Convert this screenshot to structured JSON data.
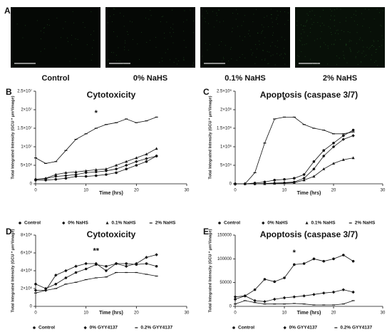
{
  "panel_a": {
    "letter": "A",
    "labels": [
      "Control",
      "0% NaHS",
      "0.1% NaHS",
      "2% NaHS"
    ]
  },
  "chart_data": [
    {
      "type": "line",
      "panel": "B",
      "title": "Cytotoxicity",
      "x_label": "Time (hrs)",
      "y_label": "Total Integrated Intensity (GCU * µm²/image)",
      "x": [
        0,
        2,
        4,
        6,
        8,
        10,
        12,
        14,
        16,
        18,
        20,
        22,
        24
      ],
      "xlim": [
        0,
        30
      ],
      "xticks": [
        0,
        10,
        20,
        30
      ],
      "ylim": [
        0,
        25000000
      ],
      "yticks": [
        0,
        {
          "value": 5000000,
          "label": "5×10⁶"
        },
        {
          "value": 10000000,
          "label": "1×10⁷"
        },
        {
          "value": 15000000,
          "label": "1.5×10⁷"
        },
        {
          "value": 20000000,
          "label": "2×10⁷"
        },
        {
          "value": 25000000,
          "label": "2.5×10⁷"
        }
      ],
      "annotation": {
        "text": "*",
        "x": 12,
        "y": 19000000
      },
      "series": [
        {
          "name": "Control",
          "color": "#111111",
          "marker": "circle",
          "values": [
            1000000,
            1000000,
            1200000,
            1500000,
            2000000,
            2000000,
            2200000,
            2500000,
            3000000,
            4000000,
            5000000,
            6000000,
            7500000
          ]
        },
        {
          "name": "0% NaHS",
          "color": "#111111",
          "marker": "diamond",
          "values": [
            1200000,
            1400000,
            2000000,
            2200000,
            2500000,
            3000000,
            3200000,
            3500000,
            4000000,
            5000000,
            6000000,
            6800000,
            7500000
          ]
        },
        {
          "name": "0.1% NaHS",
          "color": "#111111",
          "marker": "triangle",
          "values": [
            1200000,
            1500000,
            2500000,
            3000000,
            3200000,
            3500000,
            3800000,
            4000000,
            5000000,
            6000000,
            7000000,
            8000000,
            9500000
          ]
        },
        {
          "name": "2% NaHS",
          "color": "#111111",
          "marker": "dash",
          "values": [
            7000000,
            5500000,
            6000000,
            9000000,
            12000000,
            13500000,
            15000000,
            16000000,
            16500000,
            17500000,
            16500000,
            17000000,
            18000000
          ]
        }
      ]
    },
    {
      "type": "line",
      "panel": "C",
      "title": "Apoptosis (caspase 3/7)",
      "x_label": "Time (hrs)",
      "y_label": "Total Integrated Intensity (GCU * µm²/image)",
      "x": [
        0,
        2,
        4,
        6,
        8,
        10,
        12,
        14,
        16,
        18,
        20,
        22,
        24
      ],
      "xlim": [
        0,
        30
      ],
      "xticks": [
        0,
        10,
        20,
        30
      ],
      "ylim": [
        0,
        2500000
      ],
      "yticks": [
        0,
        {
          "value": 500000,
          "label": "5×10⁵"
        },
        {
          "value": 1000000,
          "label": "1×10⁶"
        },
        {
          "value": 1500000,
          "label": "1.5×10⁶"
        },
        {
          "value": 2000000,
          "label": "2×10⁶"
        },
        {
          "value": 2500000,
          "label": "2.5×10⁶"
        }
      ],
      "annotation": {
        "text": "*",
        "x": 10,
        "y": 2250000
      },
      "series": [
        {
          "name": "Control",
          "color": "#111111",
          "marker": "circle",
          "values": [
            0,
            0,
            20000,
            50000,
            100000,
            120000,
            150000,
            250000,
            600000,
            900000,
            1100000,
            1300000,
            1450000
          ]
        },
        {
          "name": "0% NaHS",
          "color": "#111111",
          "marker": "diamond",
          "values": [
            0,
            0,
            0,
            10000,
            20000,
            30000,
            50000,
            150000,
            400000,
            750000,
            1000000,
            1200000,
            1300000
          ]
        },
        {
          "name": "0.1% NaHS",
          "color": "#111111",
          "marker": "triangle",
          "values": [
            0,
            0,
            0,
            0,
            10000,
            20000,
            30000,
            100000,
            200000,
            400000,
            550000,
            650000,
            700000
          ]
        },
        {
          "name": "2% NaHS",
          "color": "#111111",
          "marker": "dash",
          "values": [
            0,
            0,
            300000,
            1100000,
            1750000,
            1800000,
            1800000,
            1600000,
            1500000,
            1450000,
            1350000,
            1350000,
            1400000
          ]
        }
      ]
    },
    {
      "type": "line",
      "panel": "D",
      "title": "Cytotoxicity",
      "x_label": "Time (hrs)",
      "y_label": "Total Integrated Intensity (GCU * µm²/image)",
      "x": [
        0,
        2,
        4,
        6,
        8,
        10,
        12,
        14,
        16,
        18,
        20,
        22,
        24
      ],
      "xlim": [
        0,
        30
      ],
      "xticks": [
        0,
        10,
        20,
        30
      ],
      "ylim": [
        0,
        8000000
      ],
      "yticks": [
        0,
        {
          "value": 2000000,
          "label": "2×10⁶"
        },
        {
          "value": 4000000,
          "label": "4×10⁶"
        },
        {
          "value": 6000000,
          "label": "6×10⁶"
        },
        {
          "value": 8000000,
          "label": "8×10⁶"
        }
      ],
      "annotation": {
        "text": "**",
        "x": 12,
        "y": 6200000
      },
      "series": [
        {
          "name": "Control",
          "color": "#111111",
          "marker": "circle",
          "values": [
            2500000,
            2000000,
            2500000,
            3200000,
            3800000,
            4200000,
            4700000,
            4500000,
            4800000,
            4800000,
            4700000,
            4800000,
            4500000
          ]
        },
        {
          "name": "0% GYY4137",
          "color": "#111111",
          "marker": "diamond",
          "values": [
            1800000,
            1800000,
            3500000,
            4000000,
            4500000,
            4800000,
            4800000,
            4000000,
            4800000,
            4500000,
            4800000,
            5500000,
            5800000
          ]
        },
        {
          "name": "0.2% GYY4137",
          "color": "#111111",
          "marker": "dash",
          "values": [
            1500000,
            1800000,
            2000000,
            2500000,
            2700000,
            3000000,
            3200000,
            3300000,
            3800000,
            3800000,
            3800000,
            3600000,
            3400000
          ]
        }
      ]
    },
    {
      "type": "line",
      "panel": "E",
      "title": "Apoptosis (caspase 3/7)",
      "x_label": "Time (hrs)",
      "y_label": "Total Integrated Intensity (GCU * µm²/image)",
      "x": [
        0,
        2,
        4,
        6,
        8,
        10,
        12,
        14,
        16,
        18,
        20,
        22,
        24
      ],
      "xlim": [
        0,
        30
      ],
      "xticks": [
        0,
        10,
        20,
        30
      ],
      "ylim": [
        0,
        150000
      ],
      "yticks": [
        0,
        50000,
        100000,
        150000
      ],
      "annotation": {
        "text": "*",
        "x": 12,
        "y": 112000
      },
      "series": [
        {
          "name": "Control",
          "color": "#111111",
          "marker": "circle",
          "values": [
            15000,
            22000,
            35000,
            57000,
            52000,
            60000,
            88000,
            90000,
            100000,
            95000,
            100000,
            108000,
            95000
          ]
        },
        {
          "name": "0% GYY4137",
          "color": "#111111",
          "marker": "diamond",
          "values": [
            20000,
            22000,
            12000,
            10000,
            15000,
            18000,
            20000,
            22000,
            25000,
            28000,
            30000,
            35000,
            30000
          ]
        },
        {
          "name": "0.2% GYY4137",
          "color": "#111111",
          "marker": "dash",
          "values": [
            5000,
            12000,
            8000,
            5000,
            5000,
            5000,
            6000,
            5000,
            3000,
            3000,
            3000,
            5000,
            12000
          ]
        }
      ]
    }
  ]
}
